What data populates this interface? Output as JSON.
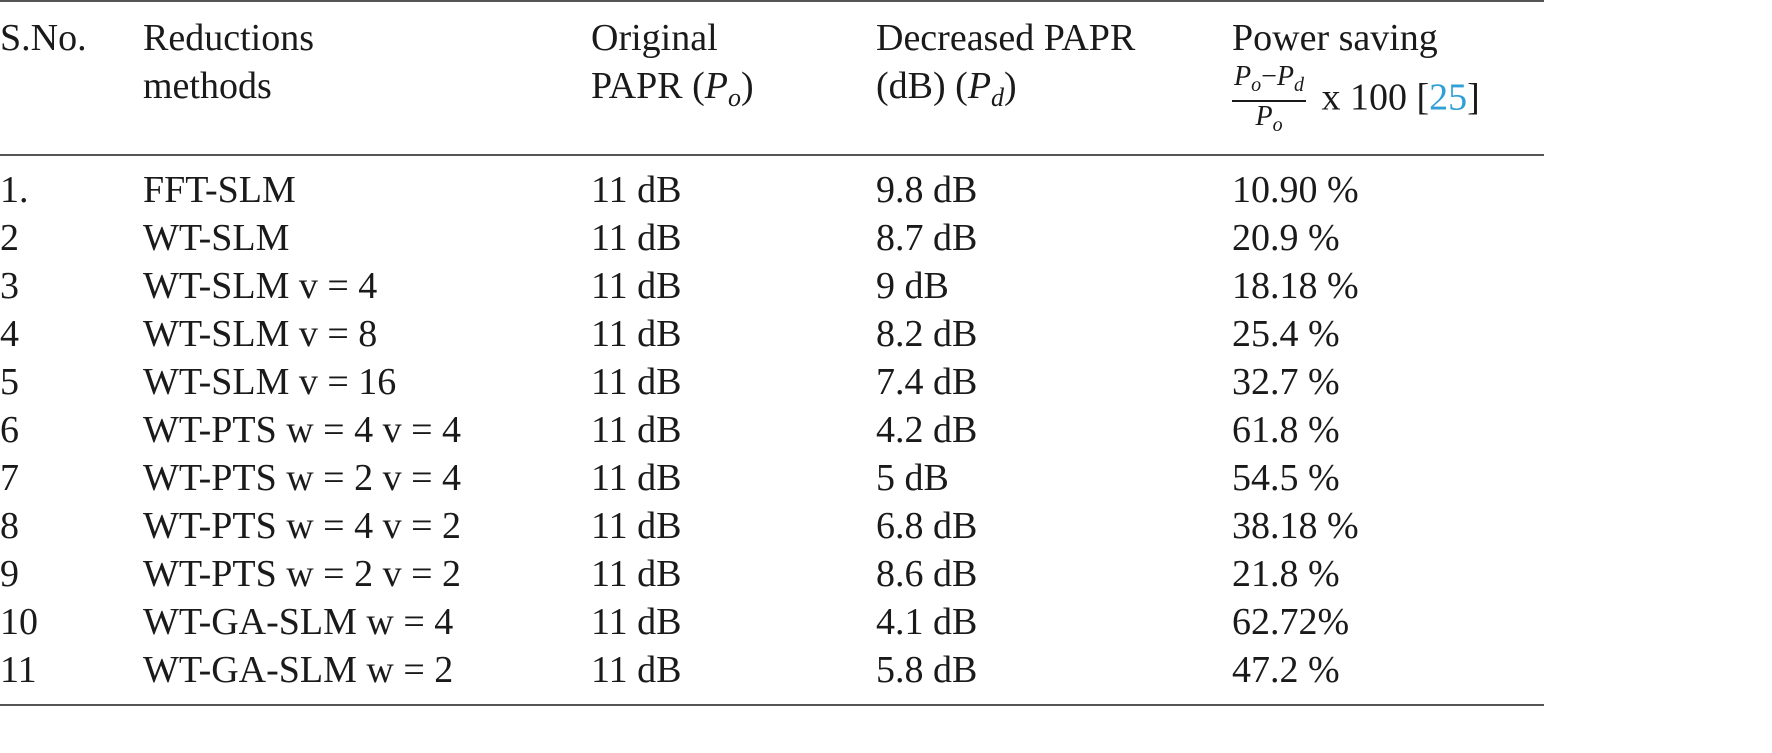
{
  "headers": {
    "sno": "S.No.",
    "method_line1": "Reductions",
    "method_line2": "methods",
    "orig_line1": "Original",
    "orig_line2": "PAPR",
    "orig_var": "P",
    "orig_sub": "o",
    "dec_line1": "Decreased PAPR",
    "dec_line2": "(dB)",
    "dec_var": "P",
    "dec_sub": "d",
    "saving_line1": "Power saving",
    "saving_num_a": "P",
    "saving_num_a_sub": "o",
    "saving_minus": "−",
    "saving_num_b": "P",
    "saving_num_b_sub": "d",
    "saving_den": "P",
    "saving_den_sub": "o",
    "saving_mult": "x 100",
    "cite_open": "[",
    "cite_ref": "25",
    "cite_close": "]"
  },
  "rows": [
    {
      "sno": "1.",
      "method": "FFT-SLM",
      "orig": "11 dB",
      "dec": "9.8 dB",
      "saving": "10.90 %"
    },
    {
      "sno": "2",
      "method": "WT-SLM",
      "orig": "11 dB",
      "dec": "8.7 dB",
      "saving": "20.9 %"
    },
    {
      "sno": "3",
      "method": "WT-SLM v = 4",
      "orig": "11 dB",
      "dec": "9 dB",
      "saving": "18.18 %"
    },
    {
      "sno": "4",
      "method": "WT-SLM v = 8",
      "orig": "11 dB",
      "dec": "8.2 dB",
      "saving": "25.4 %"
    },
    {
      "sno": "5",
      "method": "WT-SLM v = 16",
      "orig": "11 dB",
      "dec": "7.4 dB",
      "saving": "32.7 %"
    },
    {
      "sno": "6",
      "method": "WT-PTS w = 4 v = 4",
      "orig": "11 dB",
      "dec": "4.2 dB",
      "saving": "61.8 %"
    },
    {
      "sno": "7",
      "method": "WT-PTS w = 2 v = 4",
      "orig": "11 dB",
      "dec": "5 dB",
      "saving": "54.5 %"
    },
    {
      "sno": "8",
      "method": "WT-PTS w = 4 v = 2",
      "orig": "11 dB",
      "dec": "6.8 dB",
      "saving": "38.18 %"
    },
    {
      "sno": "9",
      "method": "WT-PTS w = 2 v = 2",
      "orig": "11 dB",
      "dec": "8.6 dB",
      "saving": "21.8 %"
    },
    {
      "sno": "10",
      "method": "WT-GA-SLM w = 4",
      "orig": "11 dB",
      "dec": "4.1 dB",
      "saving": "62.72%"
    },
    {
      "sno": "11",
      "method": "WT-GA-SLM w = 2",
      "orig": "11 dB",
      "dec": "5.8 dB",
      "saving": "47.2 %"
    }
  ],
  "colors": {
    "text": "#1a1a1a",
    "rule": "#555555",
    "citation": "#2f9fd6"
  }
}
